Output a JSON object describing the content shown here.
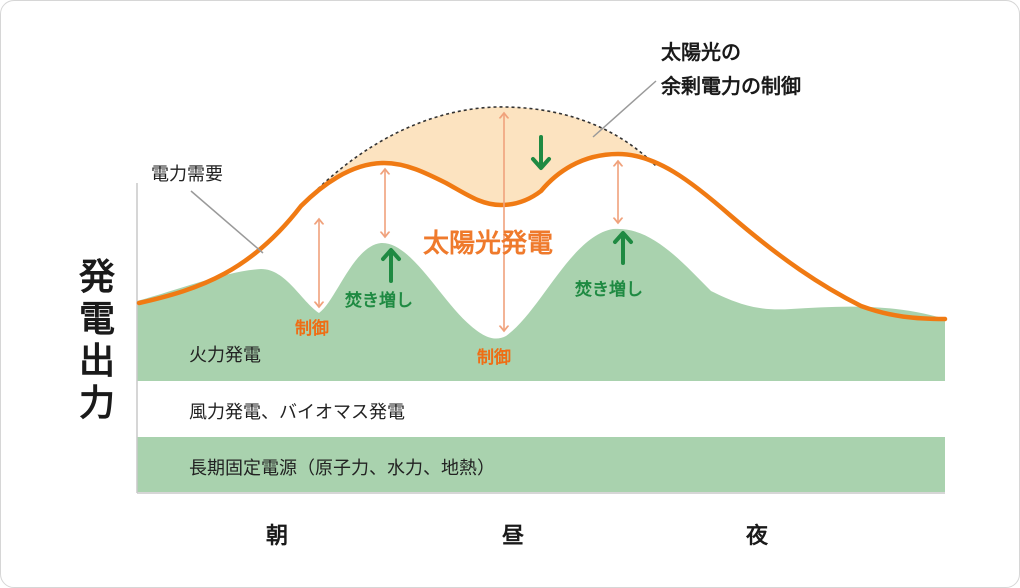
{
  "diagram": {
    "y_axis_label": "発電出力",
    "x_axis_labels": [
      "朝",
      "昼",
      "夜"
    ],
    "layers": {
      "baseload": "長期固定電源（原子力、水力、地熱）",
      "variable_renewables": "風力発電、バイオマス発電",
      "thermal": "火力発電",
      "solar": "太陽光発電"
    },
    "callouts": {
      "demand": "電力需要",
      "surplus_line1": "太陽光の",
      "surplus_line2": "余剰電力の制御"
    },
    "annotations": {
      "curtail": "制御",
      "ramp_up": "焚き増し"
    },
    "colors": {
      "demand_curve": "#f07a13",
      "solar_area": "#fce3c0",
      "thermal_area": "#a9d2ae",
      "baseload_band": "#a9d2ae",
      "arrow_salmon": "#f0a27c",
      "arrow_green": "#1f8a42"
    }
  }
}
